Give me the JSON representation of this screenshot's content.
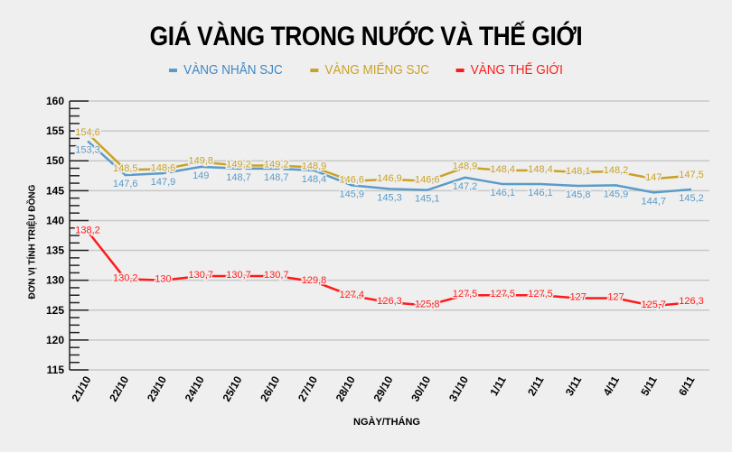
{
  "title": "GIÁ VÀNG TRONG NƯỚC VÀ THẾ GIỚI",
  "legend": [
    {
      "label": "VÀNG NHẪN SJC",
      "color": "#5b9bc8"
    },
    {
      "label": "VÀNG MIẾNG SJC",
      "color": "#c9a227"
    },
    {
      "label": "VÀNG THẾ GIỚI",
      "color": "#ff1a1a"
    }
  ],
  "chart_data": {
    "type": "line",
    "title": "GIÁ VÀNG TRONG NƯỚC VÀ THẾ GIỚI",
    "xlabel": "NGÀY/THÁNG",
    "ylabel": "ĐƠN VỊ TÍNH TRIỆU ĐỒNG",
    "ylim": [
      115,
      160
    ],
    "yticks": [
      115,
      120,
      125,
      130,
      135,
      140,
      145,
      150,
      155,
      160
    ],
    "grid": true,
    "legend_position": "top",
    "categories": [
      "21/10",
      "22/10",
      "23/10",
      "24/10",
      "25/10",
      "26/10",
      "27/10",
      "28/10",
      "29/10",
      "30/10",
      "31/10",
      "1/11",
      "2/11",
      "3/11",
      "4/11",
      "5/11",
      "6/11"
    ],
    "series": [
      {
        "name": "VÀNG NHẪN SJC",
        "color": "#5b9bc8",
        "values": [
          153.3,
          147.6,
          147.9,
          149.0,
          148.7,
          148.7,
          148.4,
          145.9,
          145.3,
          145.1,
          147.2,
          146.1,
          146.1,
          145.8,
          145.9,
          144.7,
          145.2
        ]
      },
      {
        "name": "VÀNG MIẾNG SJC",
        "color": "#c9a227",
        "values": [
          154.6,
          148.5,
          148.6,
          149.8,
          149.2,
          149.2,
          148.9,
          146.6,
          146.9,
          146.6,
          148.9,
          148.4,
          148.4,
          148.1,
          148.2,
          147,
          147.5
        ]
      },
      {
        "name": "VÀNG THẾ GIỚI",
        "color": "#ff1a1a",
        "values": [
          138.2,
          130.2,
          130,
          130.7,
          130.7,
          130.7,
          129.8,
          127.4,
          126.3,
          125.8,
          127.5,
          127.5,
          127.5,
          127,
          127,
          125.7,
          126.3
        ]
      }
    ]
  }
}
